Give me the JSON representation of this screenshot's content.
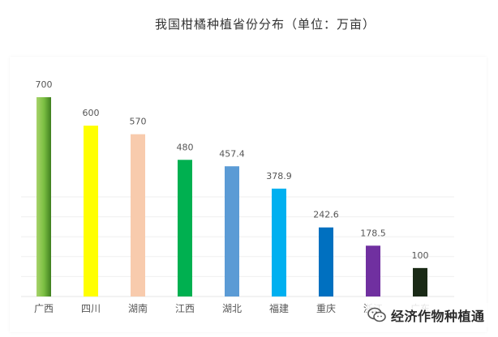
{
  "chart_data": {
    "type": "bar",
    "title": "我国柑橘种植省份分布（单位：万亩）",
    "categories": [
      "广西",
      "四川",
      "湖南",
      "江西",
      "湖北",
      "福建",
      "重庆",
      "浙江",
      "广东"
    ],
    "values": [
      700,
      600,
      570,
      480,
      457.4,
      378.9,
      242.6,
      178.5,
      100
    ],
    "value_labels": [
      "700",
      "600",
      "570",
      "480",
      "457.4",
      "378.9",
      "242.6",
      "178.5",
      "100"
    ],
    "bar_colors": [
      "#6fba3c",
      "#ffff00",
      "#f8cbad",
      "#00b050",
      "#5b9bd5",
      "#00b0f0",
      "#0070c0",
      "#7030a0",
      "#1a2a16"
    ],
    "ylim": [
      0,
      700
    ],
    "grid": true,
    "legend": "none",
    "xlabel": "",
    "ylabel": ""
  },
  "watermark": {
    "text": "经济作物种植通",
    "icon": "wechat-icon"
  }
}
